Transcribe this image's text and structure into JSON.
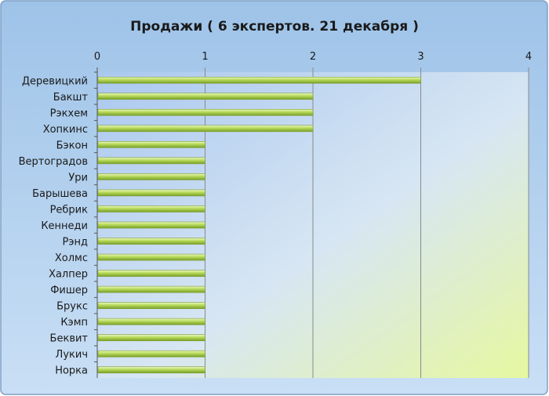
{
  "chart_data": {
    "type": "bar",
    "orientation": "horizontal",
    "title": "Продажи ( 6 экспертов. 21 декабря )",
    "xlabel": "",
    "ylabel": "",
    "xlim": [
      0,
      4
    ],
    "ticks": [
      "0",
      "1",
      "2",
      "3",
      "4"
    ],
    "grid": true,
    "legend": "none",
    "categories": [
      "Деревицкий",
      "Бакшт",
      "Рэкхем",
      "Хопкинс",
      "Бэкон",
      "Вертоградов",
      "Ури",
      "Барышева",
      "Ребрик",
      "Кеннеди",
      "Рэнд",
      "Холмс",
      "Халпер",
      "Фишер",
      "Брукс",
      "Кэмп",
      "Беквит",
      "Лукич",
      "Норка"
    ],
    "values": [
      3,
      2,
      2,
      2,
      1,
      1,
      1,
      1,
      1,
      1,
      1,
      1,
      1,
      1,
      1,
      1,
      1,
      1,
      1
    ],
    "colors": {
      "bar_fill": "#b5d957",
      "bar_light": "#eef8c4",
      "bar_dark": "#7a9e2a",
      "frame_start": "#9ec3e8",
      "frame_end": "#c9dff5",
      "plot_start": "#aac8ef",
      "plot_end": "#e6f8a0",
      "grid": "#8a8a8a"
    }
  }
}
